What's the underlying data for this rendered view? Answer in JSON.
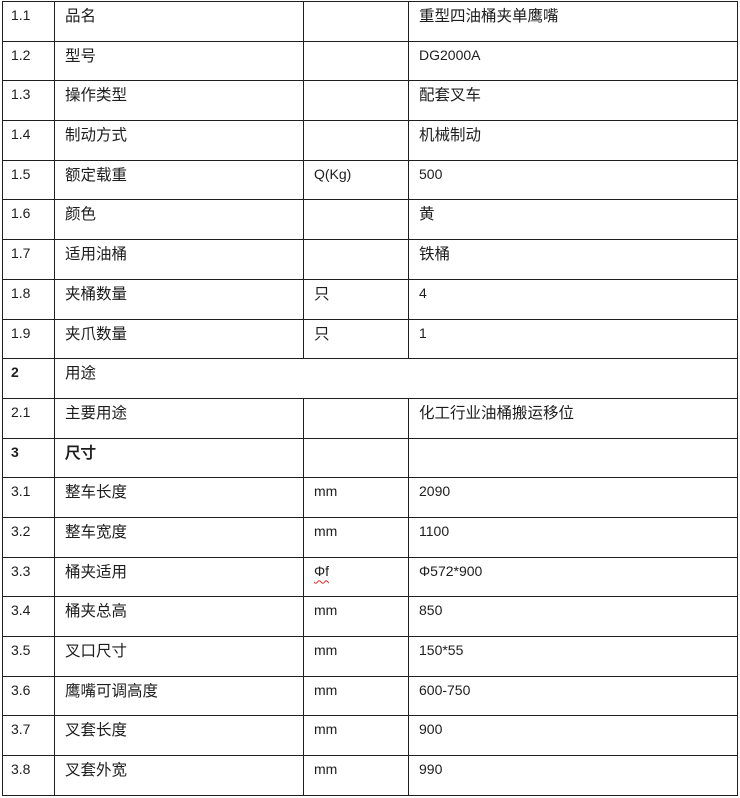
{
  "colors": {
    "background": "#ffffff",
    "border": "#1f1f1f",
    "text": "#1d1d1d",
    "spellcheck_underline": "#e02b20"
  },
  "table": {
    "columns": [
      "index",
      "name",
      "unit",
      "value"
    ],
    "rows": [
      {
        "id": "1.1",
        "name": "品名",
        "unit": "",
        "value": "重型四油桶夹单鹰嘴"
      },
      {
        "id": "1.2",
        "name": "型号",
        "unit": "",
        "value": "DG2000A"
      },
      {
        "id": "1.3",
        "name": "操作类型",
        "unit": "",
        "value": "配套叉车"
      },
      {
        "id": "1.4",
        "name": "制动方式",
        "unit": "",
        "value": "机械制动"
      },
      {
        "id": "1.5",
        "name": "额定载重",
        "unit": "Q(Kg)",
        "value": "500"
      },
      {
        "id": "1.6",
        "name": "颜色",
        "unit": "",
        "value": "黄"
      },
      {
        "id": "1.7",
        "name": "适用油桶",
        "unit": "",
        "value": "铁桶"
      },
      {
        "id": "1.8",
        "name": "夹桶数量",
        "unit": "只",
        "value": "4"
      },
      {
        "id": "1.9",
        "name": "夹爪数量",
        "unit": "只",
        "value": "1"
      },
      {
        "id": "2",
        "name": "用途",
        "span": true,
        "id_bold": true
      },
      {
        "id": "2.1",
        "name": "主要用途",
        "unit": "",
        "value": "化工行业油桶搬运移位"
      },
      {
        "id": "3",
        "name": "尺寸",
        "unit": "",
        "value": "",
        "id_bold": true,
        "name_bold": true
      },
      {
        "id": "3.1",
        "name": "整车长度",
        "unit": "mm",
        "value": "2090"
      },
      {
        "id": "3.2",
        "name": "整车宽度",
        "unit": "mm",
        "value": "1100"
      },
      {
        "id": "3.3",
        "name": "桶夹适用",
        "unit": "Φf",
        "unit_squiggle": true,
        "value": "Φ572*900"
      },
      {
        "id": "3.4",
        "name": "桶夹总高",
        "unit": "mm",
        "value": "850"
      },
      {
        "id": "3.5",
        "name": "叉口尺寸",
        "unit": "mm",
        "value": "150*55"
      },
      {
        "id": "3.6",
        "name": "鹰嘴可调高度",
        "unit": "mm",
        "value": "600-750"
      },
      {
        "id": "3.7",
        "name": "叉套长度",
        "unit": "mm",
        "value": "900"
      },
      {
        "id": "3.8",
        "name": "叉套外宽",
        "unit": "mm",
        "value": "990"
      }
    ]
  }
}
